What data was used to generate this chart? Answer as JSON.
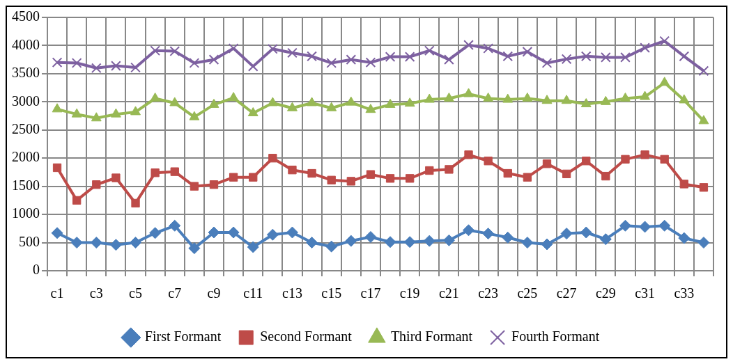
{
  "chart_data": {
    "type": "line",
    "categories": [
      "c1",
      null,
      "c3",
      null,
      "c5",
      null,
      "c7",
      null,
      "c9",
      null,
      "c11",
      null,
      "c13",
      null,
      "c15",
      null,
      "c17",
      null,
      "c19",
      null,
      "c21",
      null,
      "c23",
      null,
      "c25",
      null,
      "c27",
      null,
      "c29",
      null,
      "c31",
      null,
      "c33",
      null
    ],
    "series": [
      {
        "name": "First Formant",
        "color": "#4a7ebb",
        "marker": "diamond",
        "values": [
          670,
          500,
          500,
          460,
          500,
          670,
          800,
          400,
          680,
          680,
          420,
          640,
          680,
          500,
          430,
          530,
          600,
          510,
          510,
          530,
          540,
          720,
          660,
          590,
          500,
          470,
          660,
          680,
          560,
          800,
          780,
          800,
          580,
          500
        ]
      },
      {
        "name": "Second Formant",
        "color": "#be4b48",
        "marker": "square",
        "values": [
          1830,
          1250,
          1530,
          1650,
          1200,
          1740,
          1760,
          1500,
          1530,
          1660,
          1660,
          2000,
          1790,
          1730,
          1610,
          1590,
          1710,
          1640,
          1640,
          1780,
          1800,
          2060,
          1950,
          1730,
          1660,
          1900,
          1720,
          1950,
          1680,
          1980,
          2060,
          1980,
          1540,
          1480
        ]
      },
      {
        "name": "Third Formant",
        "color": "#98b954",
        "marker": "triangle",
        "values": [
          2870,
          2780,
          2710,
          2780,
          2820,
          3060,
          2980,
          2730,
          2950,
          3070,
          2800,
          2980,
          2890,
          2980,
          2890,
          2990,
          2860,
          2950,
          2970,
          3040,
          3060,
          3140,
          3060,
          3040,
          3060,
          3020,
          3020,
          2960,
          3000,
          3060,
          3090,
          3340,
          3030,
          2660
        ]
      },
      {
        "name": "Fourth Formant",
        "color": "#7d60a0",
        "marker": "cross",
        "values": [
          3700,
          3690,
          3600,
          3640,
          3610,
          3910,
          3900,
          3690,
          3750,
          3950,
          3630,
          3940,
          3870,
          3810,
          3690,
          3750,
          3700,
          3800,
          3800,
          3910,
          3750,
          4010,
          3950,
          3810,
          3890,
          3690,
          3760,
          3810,
          3790,
          3790,
          3960,
          4080,
          3810,
          3550
        ]
      }
    ],
    "ylim": [
      0,
      4500
    ],
    "yticks": [
      0,
      500,
      1000,
      1500,
      2000,
      2500,
      3000,
      3500,
      4000,
      4500
    ],
    "grid": true,
    "legend": "bottom",
    "line_style": "solid"
  }
}
